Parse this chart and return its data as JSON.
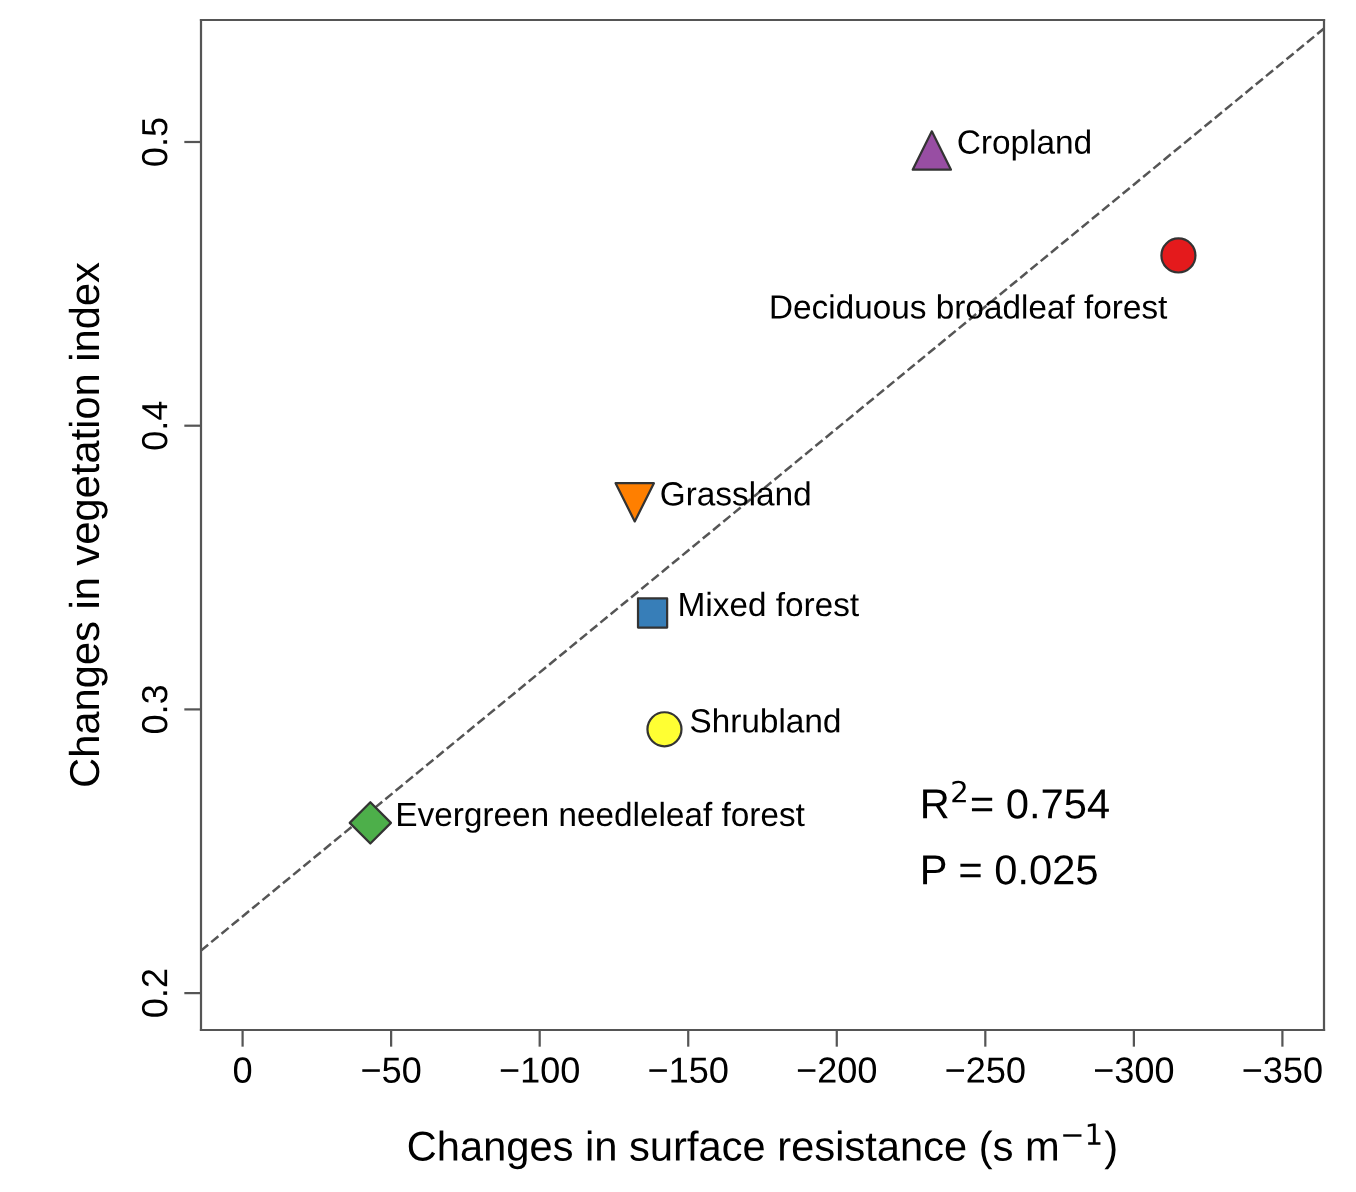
{
  "chart_data": {
    "type": "scatter",
    "xlabel": "Changes in surface resistance (s m$^{−1}$)",
    "ylabel": "Changes in vegetation index",
    "xlim": [
      14,
      -364
    ],
    "ylim": [
      0.187,
      0.543
    ],
    "xticks": [
      {
        "value": 0,
        "label": "0"
      },
      {
        "value": -50,
        "label": "−50"
      },
      {
        "value": -100,
        "label": "−100"
      },
      {
        "value": -150,
        "label": "−150"
      },
      {
        "value": -200,
        "label": "−200"
      },
      {
        "value": -250,
        "label": "−250"
      },
      {
        "value": -300,
        "label": "−300"
      },
      {
        "value": -350,
        "label": "−350"
      }
    ],
    "yticks": [
      0.2,
      0.3,
      0.4,
      0.5
    ],
    "grid": false,
    "series": [
      {
        "name": "Cropland",
        "color": "#984ea3",
        "marker": "triangle",
        "x": [
          -232
        ],
        "values": [
          0.497
        ]
      },
      {
        "name": "Deciduous broadleaf forest",
        "color": "#e41a1c",
        "marker": "circle",
        "x": [
          -315
        ],
        "values": [
          0.46
        ]
      },
      {
        "name": "Grassland",
        "color": "#ff7f00",
        "marker": "triangle_down",
        "x": [
          -132
        ],
        "values": [
          0.373
        ]
      },
      {
        "name": "Mixed forest",
        "color": "#377eb8",
        "marker": "square",
        "x": [
          -138
        ],
        "values": [
          0.334
        ]
      },
      {
        "name": "Shrubland",
        "color": "#ffff33",
        "marker": "circle",
        "x": [
          -142
        ],
        "values": [
          0.293
        ]
      },
      {
        "name": "Evergreen needleleaf forest",
        "color": "#4daf4a",
        "marker": "diamond",
        "x": [
          -43
        ],
        "values": [
          0.26
        ]
      },
      {
        "type": "line",
        "color": "#555555",
        "line_style": "dashed",
        "x": [
          14,
          -364
        ],
        "values": [
          0.215,
          0.54
        ]
      }
    ],
    "annotations": [
      "R$^{2}$= 0.754",
      "P = 0.025"
    ]
  }
}
